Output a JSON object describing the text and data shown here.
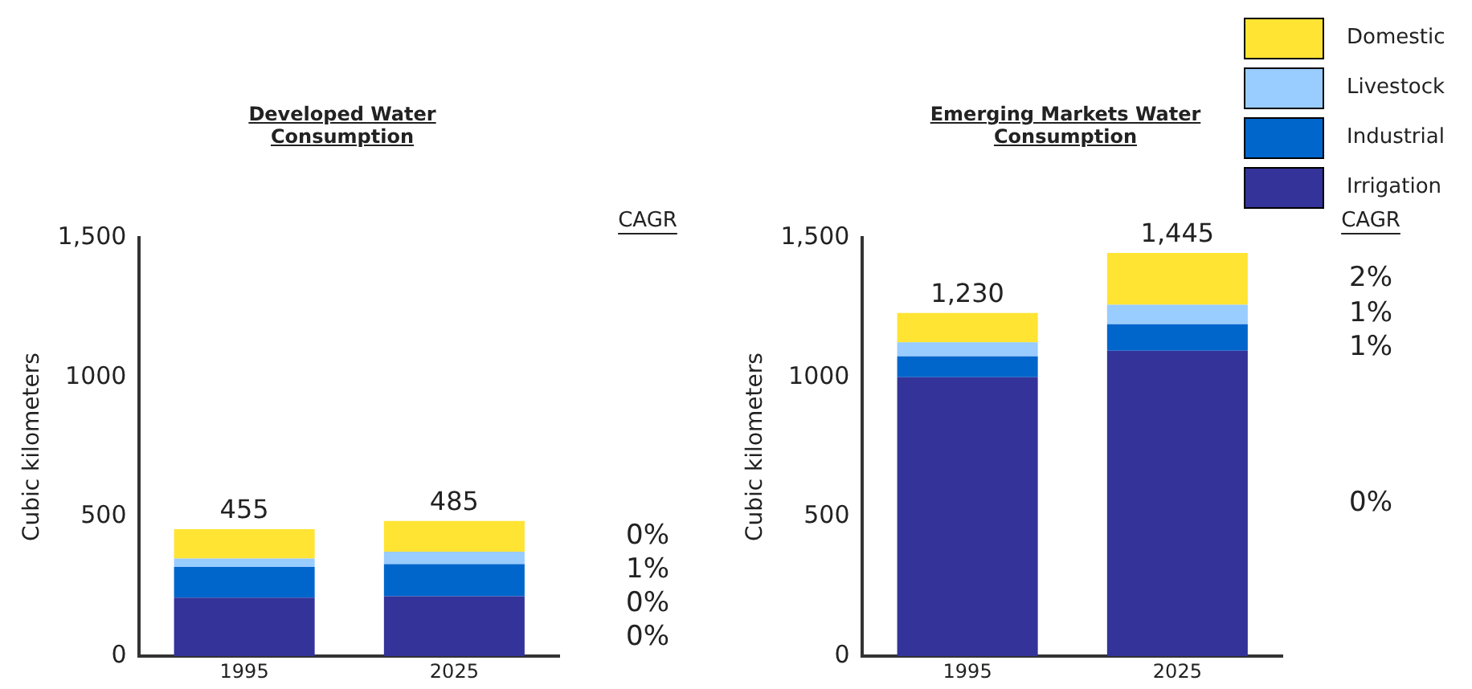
{
  "chart_data": [
    {
      "type": "bar",
      "title": "Developed Water Consumption",
      "ylabel": "Cubic kilometers",
      "categories": [
        "1995",
        "2025"
      ],
      "stacked": true,
      "ylim": [
        0,
        1500
      ],
      "yticks": [
        0,
        500,
        1000,
        {
          "value": 1500,
          "label": "1,500"
        }
      ],
      "grid": false,
      "legend": false,
      "series": [
        {
          "color": "#333399",
          "values": [
            210,
            215
          ]
        },
        {
          "color": "#0066cc",
          "values": [
            110,
            115
          ]
        },
        {
          "color": "#99ccff",
          "values": [
            30,
            45
          ]
        },
        {
          "color": "#ffe433",
          "values": [
            105,
            110
          ]
        }
      ],
      "totals": [
        "455",
        "485"
      ],
      "annotations": [
        "CAGR",
        "0%",
        "1%",
        "0%",
        "0%"
      ]
    },
    {
      "type": "bar",
      "title": "Emerging Markets Water Consumption",
      "ylabel": "Cubic kilometers",
      "categories": [
        "1995",
        "2025"
      ],
      "stacked": true,
      "ylim": [
        0,
        1500
      ],
      "yticks": [
        0,
        500,
        1000,
        {
          "value": 1500,
          "label": "1,500"
        }
      ],
      "grid": false,
      "legend": "top right",
      "series": [
        {
          "name": "Irrigation",
          "color": "#333399",
          "values": [
            1000,
            1095
          ]
        },
        {
          "name": "Industrial",
          "color": "#0066cc",
          "values": [
            75,
            95
          ]
        },
        {
          "name": "Livestock",
          "color": "#99ccff",
          "values": [
            50,
            70
          ]
        },
        {
          "name": "Domestic",
          "color": "#ffe433",
          "values": [
            105,
            185
          ]
        }
      ],
      "totals": [
        "1,230",
        "1,445"
      ],
      "annotations": [
        "CAGR",
        "2%",
        "1%",
        "1%",
        "0%"
      ]
    }
  ]
}
